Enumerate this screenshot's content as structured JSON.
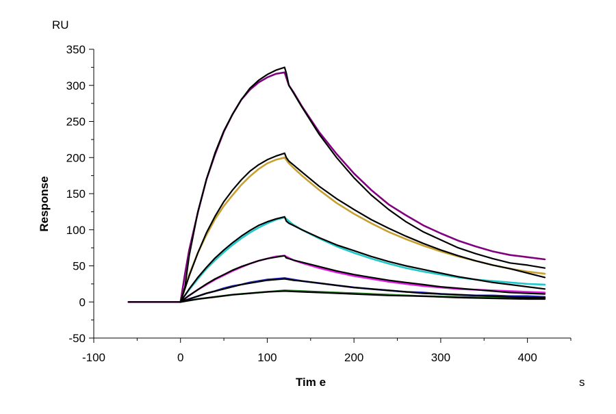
{
  "chart_data": {
    "type": "line",
    "title": "",
    "xlabel": "Tim e",
    "ylabel": "Response",
    "x_unit": "s",
    "y_unit": "RU",
    "xlim": [
      -100,
      450
    ],
    "ylim": [
      -50,
      350
    ],
    "x_ticks": [
      -100,
      0,
      100,
      200,
      300,
      400
    ],
    "y_ticks": [
      -50,
      0,
      50,
      100,
      150,
      200,
      250,
      300,
      350
    ],
    "x_tick_labels": [
      "-100",
      "0",
      "100",
      "200",
      "300",
      "400"
    ],
    "y_tick_labels": [
      "-50",
      "0",
      "50",
      "100",
      "150",
      "200",
      "250",
      "300",
      "350"
    ],
    "grid": false,
    "legend": "none",
    "series": [
      {
        "kind": "measured",
        "color": "#800080",
        "x": [
          -60,
          0,
          5,
          10,
          20,
          30,
          40,
          50,
          60,
          70,
          80,
          90,
          100,
          110,
          120,
          125,
          130,
          140,
          160,
          180,
          200,
          220,
          240,
          260,
          280,
          300,
          320,
          340,
          360,
          380,
          400,
          420
        ],
        "y": [
          0,
          0,
          38,
          72,
          124,
          170,
          205,
          236,
          260,
          280,
          294,
          304,
          311,
          316,
          318,
          300,
          291,
          271,
          235,
          205,
          178,
          155,
          135,
          120,
          106,
          95,
          85,
          77,
          70,
          65,
          62,
          59
        ]
      },
      {
        "kind": "fit",
        "color": "#000000",
        "x": [
          -60,
          0,
          5,
          10,
          20,
          30,
          40,
          50,
          60,
          70,
          80,
          90,
          100,
          110,
          120,
          122,
          125,
          130,
          140,
          160,
          180,
          200,
          220,
          240,
          260,
          280,
          300,
          320,
          340,
          360,
          380,
          400,
          420
        ],
        "y": [
          0,
          0,
          20,
          64,
          125,
          170,
          207,
          237,
          260,
          280,
          296,
          307,
          315,
          321,
          325,
          317,
          300,
          290,
          270,
          232,
          200,
          172,
          148,
          128,
          111,
          97,
          86,
          75,
          67,
          60,
          54,
          51,
          47
        ]
      },
      {
        "kind": "measured",
        "color": "#C8A030",
        "x": [
          0,
          5,
          10,
          20,
          30,
          40,
          50,
          60,
          70,
          80,
          90,
          100,
          110,
          120,
          125,
          130,
          140,
          160,
          180,
          200,
          220,
          240,
          260,
          280,
          300,
          320,
          340,
          360,
          380,
          400,
          420
        ],
        "y": [
          0,
          20,
          38,
          68,
          93,
          115,
          133,
          148,
          162,
          174,
          184,
          192,
          197,
          200,
          192,
          186,
          175,
          155,
          137,
          122,
          109,
          97,
          87,
          78,
          70,
          63,
          57,
          51,
          46,
          42,
          39
        ]
      },
      {
        "kind": "fit",
        "color": "#000000",
        "x": [
          0,
          5,
          10,
          20,
          30,
          40,
          50,
          60,
          70,
          80,
          90,
          100,
          110,
          120,
          122,
          125,
          130,
          140,
          160,
          180,
          200,
          220,
          240,
          260,
          280,
          300,
          320,
          340,
          360,
          380,
          400,
          420
        ],
        "y": [
          0,
          18,
          36,
          68,
          96,
          119,
          139,
          155,
          169,
          181,
          190,
          197,
          202,
          206,
          200,
          195,
          190,
          180,
          160,
          143,
          128,
          114,
          102,
          91,
          81,
          72,
          64,
          57,
          51,
          46,
          40,
          34
        ]
      },
      {
        "kind": "measured",
        "color": "#20C8C8",
        "x": [
          0,
          5,
          10,
          20,
          30,
          40,
          50,
          60,
          70,
          80,
          90,
          100,
          110,
          120,
          125,
          130,
          140,
          160,
          180,
          200,
          220,
          240,
          260,
          280,
          300,
          320,
          340,
          360,
          380,
          400,
          420
        ],
        "y": [
          0,
          9,
          17,
          32,
          46,
          58,
          69,
          79,
          88,
          96,
          103,
          109,
          114,
          117,
          112,
          107,
          100,
          88,
          77,
          68,
          60,
          53,
          47,
          42,
          38,
          34,
          31,
          29,
          27,
          25,
          24
        ]
      },
      {
        "kind": "fit",
        "color": "#000000",
        "x": [
          0,
          5,
          10,
          20,
          30,
          40,
          50,
          60,
          70,
          80,
          90,
          100,
          110,
          120,
          122,
          125,
          130,
          140,
          160,
          180,
          200,
          220,
          240,
          260,
          280,
          300,
          320,
          340,
          360,
          380,
          400,
          420
        ],
        "y": [
          0,
          9,
          18,
          34,
          48,
          61,
          72,
          82,
          91,
          99,
          106,
          111,
          115,
          118,
          112,
          109,
          106,
          100,
          89,
          79,
          71,
          63,
          56,
          50,
          45,
          40,
          35,
          31,
          27,
          24,
          21,
          18
        ]
      },
      {
        "kind": "measured",
        "color": "#E020E0",
        "x": [
          0,
          10,
          20,
          30,
          40,
          50,
          60,
          70,
          80,
          90,
          100,
          110,
          120,
          125,
          130,
          140,
          160,
          180,
          200,
          220,
          240,
          260,
          280,
          300,
          320,
          340,
          360,
          380,
          400,
          420
        ],
        "y": [
          0,
          9,
          17,
          24,
          31,
          37,
          43,
          48,
          53,
          57,
          60,
          63,
          64,
          61,
          58,
          54,
          47,
          41,
          36,
          32,
          28,
          25,
          22,
          20,
          18,
          17,
          16,
          15,
          14,
          13
        ]
      },
      {
        "kind": "fit",
        "color": "#000000",
        "x": [
          0,
          10,
          20,
          30,
          40,
          50,
          60,
          70,
          80,
          90,
          100,
          110,
          120,
          122,
          125,
          130,
          140,
          160,
          180,
          200,
          220,
          240,
          260,
          280,
          300,
          320,
          340,
          360,
          380,
          400,
          420
        ],
        "y": [
          0,
          9,
          17,
          25,
          32,
          38,
          44,
          49,
          53,
          57,
          60,
          62,
          64,
          61,
          60,
          58,
          55,
          49,
          43,
          38,
          34,
          30,
          27,
          24,
          21,
          19,
          17,
          15,
          13,
          12,
          11
        ]
      },
      {
        "kind": "measured",
        "color": "#2020C0",
        "x": [
          0,
          10,
          20,
          30,
          40,
          50,
          60,
          70,
          80,
          90,
          100,
          110,
          120,
          130,
          140,
          160,
          180,
          200,
          220,
          240,
          260,
          280,
          300,
          320,
          340,
          360,
          380,
          400,
          420
        ],
        "y": [
          0,
          4,
          8,
          12,
          15,
          19,
          22,
          24,
          27,
          29,
          31,
          32,
          33,
          31,
          29,
          26,
          23,
          20,
          18,
          16,
          14,
          13,
          11,
          10,
          9,
          9,
          8,
          8,
          7
        ]
      },
      {
        "kind": "fit",
        "color": "#000000",
        "x": [
          0,
          10,
          20,
          30,
          40,
          50,
          60,
          70,
          80,
          90,
          100,
          110,
          120,
          125,
          130,
          140,
          160,
          180,
          200,
          220,
          240,
          260,
          280,
          300,
          320,
          340,
          360,
          380,
          400,
          420
        ],
        "y": [
          0,
          4,
          8,
          12,
          15,
          18,
          21,
          24,
          26,
          28,
          30,
          31,
          32,
          31,
          30,
          29,
          26,
          23,
          20,
          18,
          16,
          14,
          12,
          11,
          10,
          9,
          8,
          7,
          6,
          6
        ]
      },
      {
        "kind": "measured",
        "color": "#208020",
        "x": [
          0,
          20,
          40,
          60,
          80,
          100,
          120,
          140,
          160,
          200,
          240,
          280,
          320,
          360,
          400,
          420
        ],
        "y": [
          0,
          4,
          7,
          10,
          12,
          14,
          16,
          15,
          14,
          12,
          10,
          8,
          7,
          6,
          5,
          5
        ]
      },
      {
        "kind": "fit",
        "color": "#000000",
        "x": [
          0,
          20,
          40,
          60,
          80,
          100,
          120,
          140,
          160,
          200,
          240,
          280,
          320,
          360,
          400,
          420
        ],
        "y": [
          0,
          4,
          7,
          10,
          12,
          14,
          15,
          14,
          13,
          11,
          9,
          8,
          6,
          5,
          4,
          4
        ]
      }
    ]
  }
}
